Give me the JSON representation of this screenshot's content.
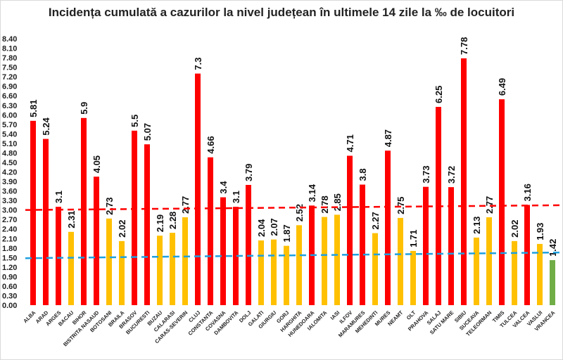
{
  "chart_data": {
    "type": "bar",
    "title": "Incidența cumulată a cazurilor la nivel județean în ultimele 14 zile la ‰ de locuitori",
    "xlabel": "",
    "ylabel": "",
    "ylim": [
      0,
      8.4
    ],
    "ytick_step": 0.3,
    "grid": false,
    "legend": "none",
    "categories": [
      "ALBA",
      "ARAD",
      "ARGES",
      "BACAU",
      "BIHOR",
      "BISTRITA NASAUD",
      "BOTOSANI",
      "BRAILA",
      "BRASOV",
      "BUCURESTI",
      "BUZAU",
      "CALARASI",
      "CARAS-SEVERIN",
      "CLUJ",
      "CONSTANTA",
      "COVASNA",
      "DAMBOVITA",
      "DOLJ",
      "GALATI",
      "GIURGIU",
      "GORJ",
      "HARGHITA",
      "HUNEDOARA",
      "IALOMITA",
      "IASI",
      "ILFOV",
      "MARAMURES",
      "MEHEDINTI",
      "MURES",
      "NEAMT",
      "OLT",
      "PRAHOVA",
      "SALAJ",
      "SATU MARE",
      "SIBIU",
      "SUCEAVA",
      "TELEORMAN",
      "TIMIS",
      "TULCEA",
      "VALCEA",
      "VASLUI",
      "VRANCEA"
    ],
    "values": [
      5.81,
      5.24,
      3.1,
      2.31,
      5.9,
      4.05,
      2.73,
      2.02,
      5.5,
      5.07,
      2.19,
      2.28,
      2.77,
      7.3,
      4.66,
      3.4,
      3.1,
      3.79,
      2.04,
      2.07,
      1.87,
      2.52,
      3.14,
      2.78,
      2.85,
      4.71,
      3.8,
      2.27,
      4.87,
      2.75,
      1.71,
      3.73,
      6.25,
      3.72,
      7.78,
      2.13,
      2.77,
      6.49,
      2.02,
      3.16,
      1.93,
      1.42
    ],
    "data_labels": [
      "5.81",
      "5.24",
      "3.1",
      "2.31",
      "5.9",
      "4.05",
      "2.73",
      "2.02",
      "5.5",
      "5.07",
      "2.19",
      "2.28",
      "2.77",
      "7.3",
      "4.66",
      "3.4",
      "3.1",
      "3.79",
      "2.04",
      "2.07",
      "1.87",
      "2.52",
      "3.14",
      "2.78",
      "2.85",
      "4.71",
      "3.8",
      "2.27",
      "4.87",
      "2.75",
      "1.71",
      "3.73",
      "6.25",
      "3.72",
      "7.78",
      "2.13",
      "2.77",
      "6.49",
      "2.02",
      "3.16",
      "1.93",
      "1.42"
    ],
    "colors": {
      "high": "#ff0000",
      "medium": "#ffc000",
      "low": "#70ad47"
    },
    "color_thresholds": [
      1.5,
      3.0
    ],
    "reference_lines": [
      {
        "color": "#ff0000",
        "style": "dashed",
        "y_start": 3.0,
        "y_end": 3.15
      },
      {
        "color": "#1fa0e0",
        "style": "dashed",
        "y_start": 1.48,
        "y_end": 1.66
      }
    ]
  }
}
